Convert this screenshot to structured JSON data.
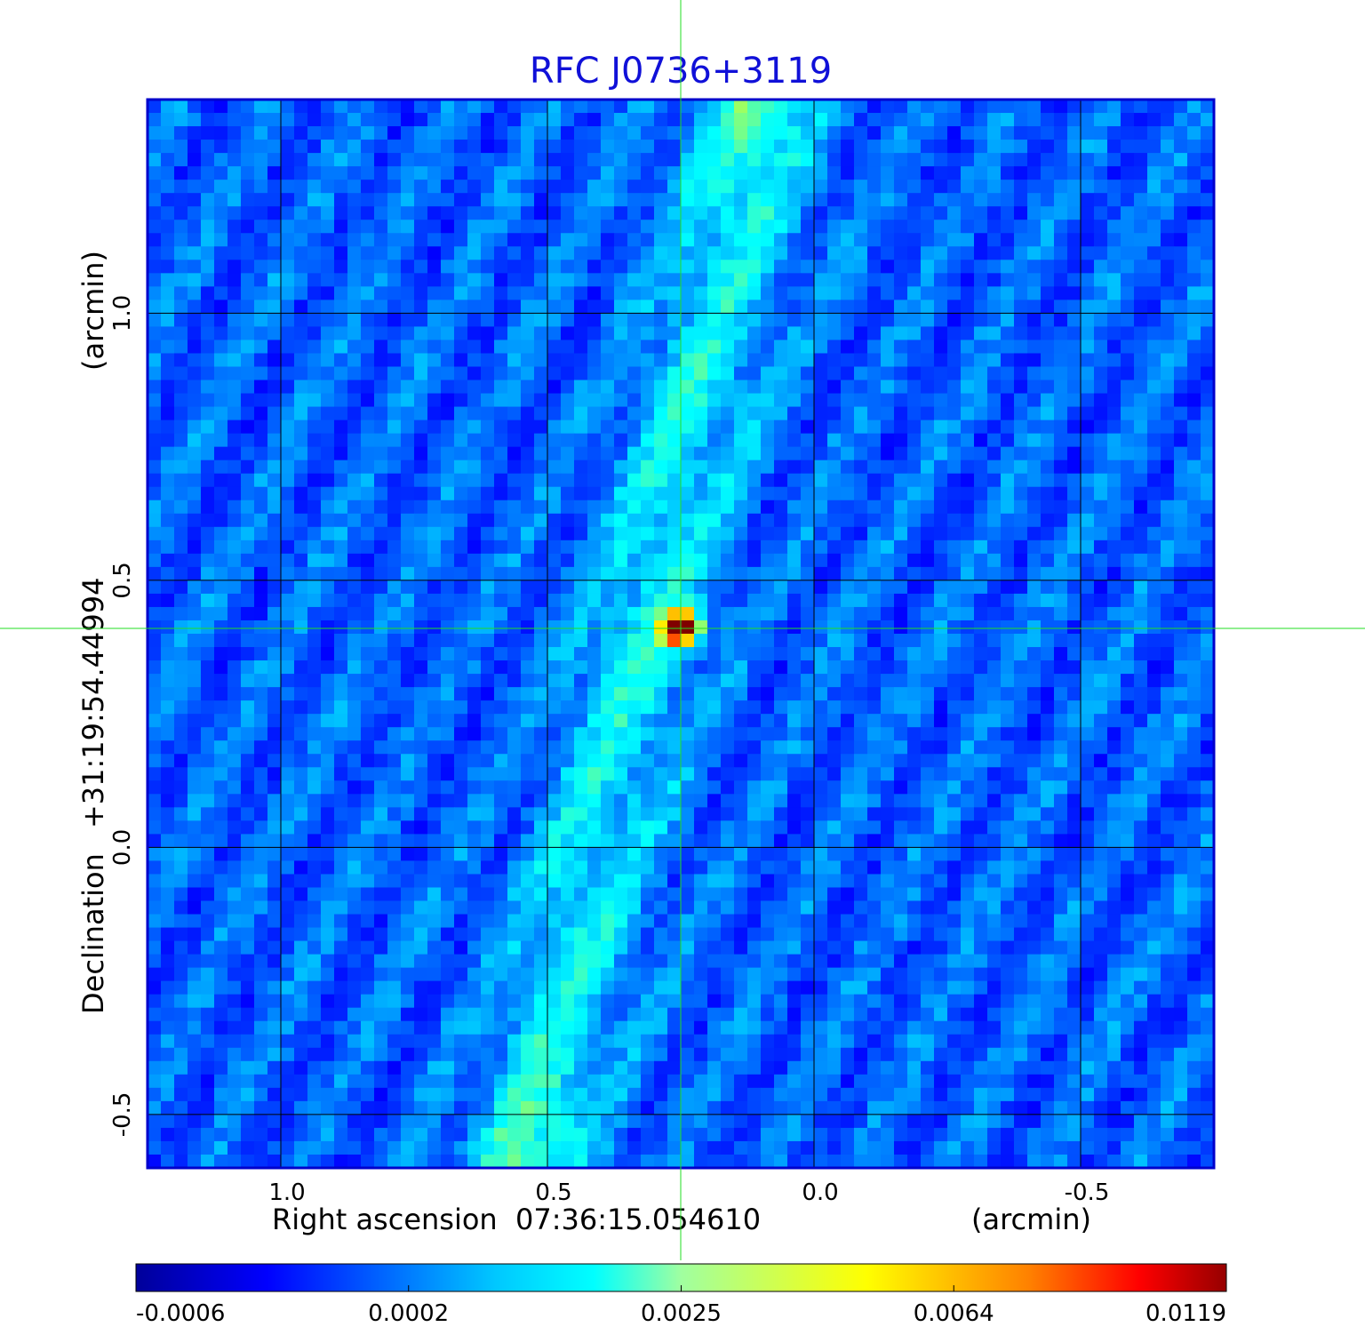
{
  "chart_data": {
    "type": "heatmap",
    "title": "RFC J0736+3119",
    "title_color": "#1010d8",
    "xlabel": {
      "prefix": "Right ascension",
      "coordinate": "07:36:15.054610",
      "unit": "(arcmin)"
    },
    "ylabel": {
      "prefix": "Declination",
      "coordinate": "+31:19:54.44994",
      "unit": "(arcmin)"
    },
    "x_range": [
      1.25,
      -0.75
    ],
    "y_range": [
      -0.6,
      1.4
    ],
    "x_ticks": [
      {
        "value": 1.0,
        "label": "1.0"
      },
      {
        "value": 0.5,
        "label": "0.5"
      },
      {
        "value": 0.0,
        "label": "0.0"
      },
      {
        "value": -0.5,
        "label": "-0.5"
      }
    ],
    "y_ticks": [
      {
        "value": -0.5,
        "label": "-0.5"
      },
      {
        "value": 0.0,
        "label": "0.0"
      },
      {
        "value": 0.5,
        "label": "0.5"
      },
      {
        "value": 1.0,
        "label": "1.0"
      }
    ],
    "grid": true,
    "crosshair": {
      "x": 0.25,
      "y": 0.41,
      "color": "#22dd22"
    },
    "source_peak": {
      "x": 0.25,
      "y": 0.41,
      "value": 0.0119
    },
    "colormap": "jet",
    "colorbar": {
      "orientation": "horizontal",
      "placement": "bottom",
      "ticks": [
        "-0.0006",
        "0.0002",
        "0.0025",
        "0.0064",
        "0.0119"
      ]
    },
    "frame_color": "#0000cc"
  }
}
